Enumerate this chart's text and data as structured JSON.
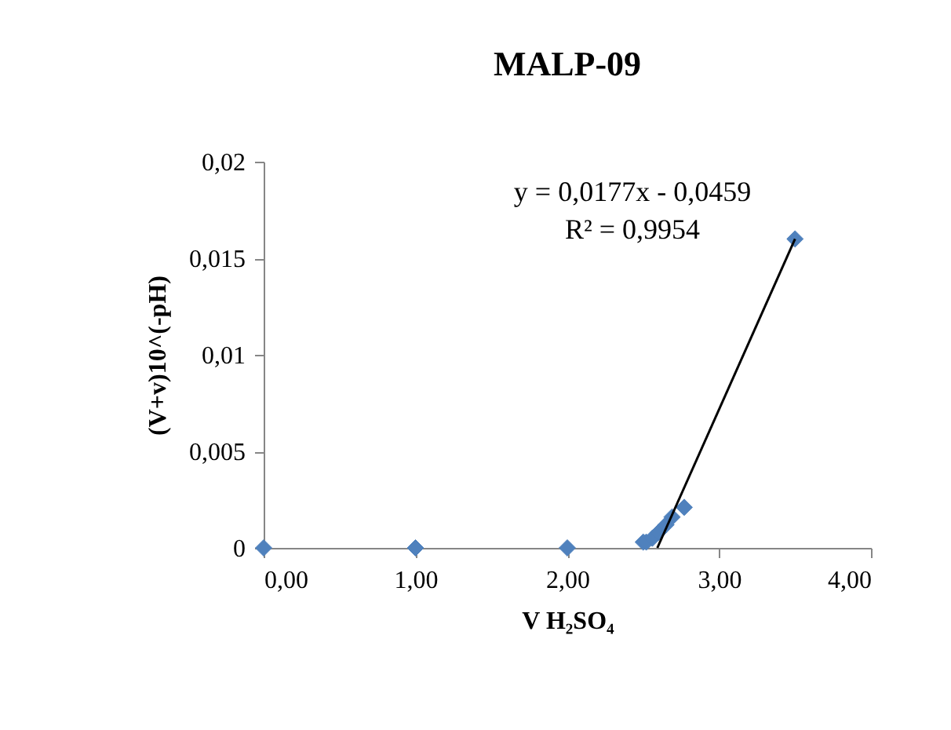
{
  "chart_data": {
    "type": "scatter",
    "title": "MALP-09",
    "xlabel": "V H₂SO₄",
    "ylabel": "(V+v)10^(-pH)",
    "series": [
      {
        "color": "#4f81bd",
        "marker": "diamond",
        "x": [
          0,
          1,
          2,
          2.5,
          2.52,
          2.56,
          2.6,
          2.65,
          2.69,
          2.77,
          3.5
        ],
        "values": [
          0,
          0,
          0,
          0.0003,
          0.0003,
          0.0005,
          0.0008,
          0.0012,
          0.0016,
          0.0021,
          0.016
        ]
      },
      {
        "type": "line",
        "color": "#000000",
        "marker": "none",
        "x": [
          2.593,
          3.5
        ],
        "values": [
          0,
          0.016
        ]
      }
    ],
    "xlim": [
      0,
      4
    ],
    "xticks": [
      {
        "value": 0,
        "label": "0,00"
      },
      {
        "value": 1,
        "label": "1,00"
      },
      {
        "value": 2,
        "label": "2,00"
      },
      {
        "value": 3,
        "label": "3,00"
      },
      {
        "value": 4,
        "label": "4,00"
      }
    ],
    "ylim": [
      0,
      0.02
    ],
    "yticks": [
      0,
      {
        "value": 0.005,
        "label": "0,005"
      },
      {
        "value": 0.01,
        "label": "0,01"
      },
      {
        "value": 0.015,
        "label": "0,015"
      },
      {
        "value": 0.02,
        "label": "0,02"
      }
    ],
    "annotations": [
      "y = 0,0177x - 0,0459",
      "R² = 0,9954"
    ],
    "grid": false
  }
}
